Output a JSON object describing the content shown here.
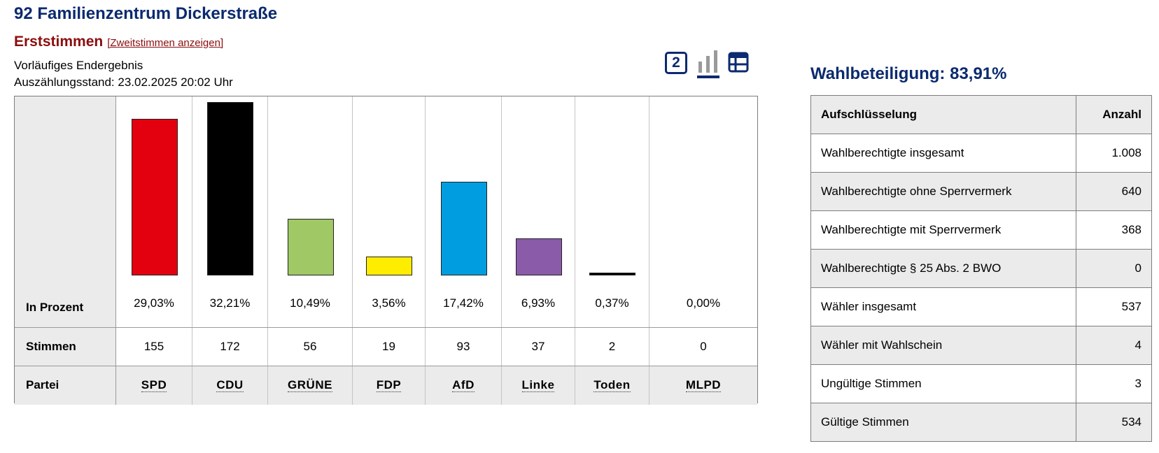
{
  "page_title": "92 Familienzentrum Dickerstraße",
  "vote_type": "Erststimmen",
  "switch_link": "[Zweitstimmen anzeigen]",
  "status": "Vorläufiges Endergebnis",
  "count_state": "Auszählungsstand: 23.02.2025 20:02 Uhr",
  "view_icons": {
    "number": "2",
    "icons": [
      "number-2-icon",
      "bar-chart-icon",
      "table-icon"
    ]
  },
  "results": {
    "row_labels": {
      "percent": "In Prozent",
      "votes": "Stimmen",
      "party": "Partei"
    }
  },
  "chart_data": {
    "type": "bar",
    "categories": [
      "SPD",
      "CDU",
      "GRÜNE",
      "FDP",
      "AfD",
      "Linke",
      "Toden",
      "MLPD"
    ],
    "values": [
      29.03,
      32.21,
      10.49,
      3.56,
      17.42,
      6.93,
      0.37,
      0.0
    ],
    "value_labels": [
      "29,03%",
      "32,21%",
      "10,49%",
      "3,56%",
      "17,42%",
      "6,93%",
      "0,37%",
      "0,00%"
    ],
    "votes": [
      "155",
      "172",
      "56",
      "19",
      "93",
      "37",
      "2",
      "0"
    ],
    "colors": [
      "#e3000f",
      "#000000",
      "#a0c865",
      "#ffed00",
      "#009ee0",
      "#8a5ba8",
      "#000000",
      "#cc0000"
    ],
    "ylim": [
      0,
      32.21
    ]
  },
  "turnout": "Wahlbeteiligung: 83,91%",
  "breakdown": {
    "header": {
      "label": "Aufschlüsselung",
      "count": "Anzahl"
    },
    "rows": [
      {
        "label": "Wahlberechtigte insgesamt",
        "value": "1.008"
      },
      {
        "label": "Wahlberechtigte ohne Sperrvermerk",
        "value": "640"
      },
      {
        "label": "Wahlberechtigte mit Sperrvermerk",
        "value": "368"
      },
      {
        "label": "Wahlberechtigte § 25 Abs. 2 BWO",
        "value": "0"
      },
      {
        "label": "Wähler insgesamt",
        "value": "537"
      },
      {
        "label": "Wähler mit Wahlschein",
        "value": "4"
      },
      {
        "label": "Ungültige Stimmen",
        "value": "3"
      },
      {
        "label": "Gültige Stimmen",
        "value": "534"
      }
    ]
  }
}
